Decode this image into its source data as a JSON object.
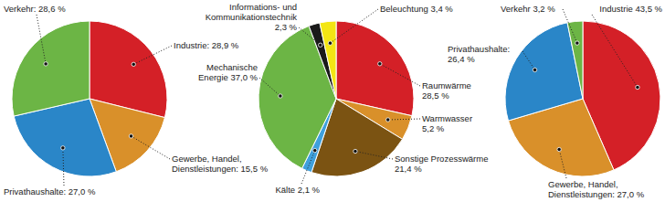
{
  "chart_data": [
    {
      "type": "pie",
      "categories": [
        "Industrie:",
        "Gewerbe, Handel, Dienstleistungen:",
        "Privathaushalte:",
        "Verkehr:"
      ],
      "values": [
        28.9,
        15.5,
        27.0,
        28.6
      ],
      "value_labels": [
        "28,9 %",
        "15,5 %",
        "27,0 %",
        "28,6 %"
      ],
      "colors": [
        "#d42027",
        "#d9902a",
        "#2a86c8",
        "#6cb545"
      ],
      "data_labels": true
    },
    {
      "type": "pie",
      "categories": [
        "Raumwärme",
        "Warmwasser",
        "Sonstige Prozesswärme",
        "Kälte",
        "Mechanische Energie",
        "Informations- und Kommunikationstechnik",
        "Beleuchtung"
      ],
      "values": [
        28.5,
        5.2,
        21.4,
        2.1,
        37.0,
        2.3,
        3.4
      ],
      "value_labels": [
        "28,5 %",
        "5,2 %",
        "21,4 %",
        "2,1 %",
        "37,0 %",
        "2,3 %",
        "3,4 %"
      ],
      "colors": [
        "#d42027",
        "#d9902a",
        "#7b5312",
        "#3fa0dc",
        "#6cb545",
        "#1a1a1a",
        "#f3e614"
      ],
      "data_labels": true
    },
    {
      "type": "pie",
      "categories": [
        "Industrie",
        "Gewerbe, Handel, Dienstleistungen:",
        "Privathaushalte:",
        "Verkehr"
      ],
      "values": [
        43.5,
        27.0,
        26.4,
        3.2
      ],
      "value_labels": [
        "43,5 %",
        "27,0 %",
        "26,4 %",
        "3,2 %"
      ],
      "colors": [
        "#d42027",
        "#d9902a",
        "#2a86c8",
        "#6cb545"
      ],
      "data_labels": true
    }
  ]
}
